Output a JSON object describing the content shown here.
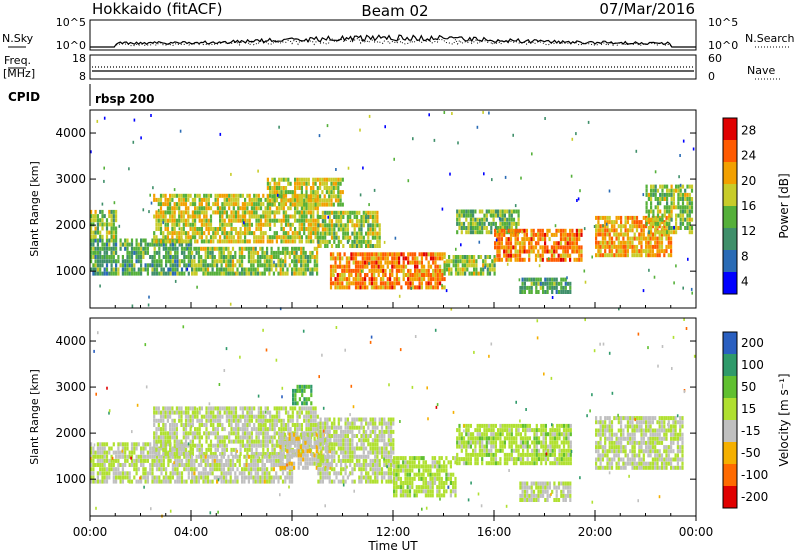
{
  "header": {
    "station": "Hokkaido (fitACF)",
    "beam": "Beam 02",
    "date": "07/Mar/2016"
  },
  "nsky_panel": {
    "label": "N.Sky",
    "left_ticks": [
      "10^5",
      "10^0"
    ],
    "right_ticks": [
      "10^5",
      "10^0"
    ],
    "right_label": "N.Search"
  },
  "freq_panel": {
    "label_top": "Freq.",
    "label_bottom": "[MHz]",
    "left_ticks": [
      "18",
      "8"
    ],
    "right_ticks": [
      "60",
      "0"
    ],
    "right_label": "Nave"
  },
  "cpid": {
    "label": "CPID",
    "mode": "rbsp 200"
  },
  "x_axis": {
    "label": "Time UT",
    "ticks": [
      "00:00",
      "04:00",
      "08:00",
      "12:00",
      "16:00",
      "20:00",
      "00:00"
    ]
  },
  "power_panel": {
    "ylabel": "Slant Range [km]",
    "yticks": [
      "4000",
      "3000",
      "2000",
      "1000"
    ],
    "colorbar_label": "Power [dB]",
    "colorbar_ticks": [
      "28",
      "24",
      "20",
      "16",
      "12",
      "8",
      "4"
    ]
  },
  "velocity_panel": {
    "ylabel": "Slant Range [km]",
    "yticks": [
      "4000",
      "3000",
      "2000",
      "1000"
    ],
    "colorbar_label": "Velocity [m s⁻¹]",
    "colorbar_ticks": [
      "200",
      "100",
      "50",
      "15",
      "-15",
      "-50",
      "-100",
      "-200"
    ]
  },
  "colors": {
    "power_scale": [
      "#0000ff",
      "#2a6bb5",
      "#3f8f6a",
      "#55b03a",
      "#c8cc2a",
      "#f2a000",
      "#ff5a00",
      "#e00000"
    ],
    "velocity_scale": [
      "#e00000",
      "#ff6a00",
      "#f5b000",
      "#c0c0c0",
      "#b0e030",
      "#60c030",
      "#2f9a6a",
      "#2a5fc0"
    ]
  },
  "chart_data": [
    {
      "type": "heatmap",
      "title": "Power [dB]",
      "xlabel": "Time UT",
      "ylabel": "Slant Range [km]",
      "xlim_hours": [
        0,
        24
      ],
      "ylim": [
        200,
        4500
      ],
      "clim": [
        0,
        32
      ],
      "bands": [
        {
          "start_h": 0.0,
          "end_h": 4.0,
          "r0": 900,
          "r1": 1700,
          "p": 12
        },
        {
          "start_h": 0.0,
          "end_h": 1.0,
          "r0": 1700,
          "r1": 2300,
          "p": 16
        },
        {
          "start_h": 2.5,
          "end_h": 9.0,
          "r0": 1600,
          "r1": 2600,
          "p": 18
        },
        {
          "start_h": 4.0,
          "end_h": 9.0,
          "r0": 900,
          "r1": 1500,
          "p": 16
        },
        {
          "start_h": 7.0,
          "end_h": 10.0,
          "r0": 2400,
          "r1": 3000,
          "p": 18
        },
        {
          "start_h": 9.0,
          "end_h": 11.5,
          "r0": 1500,
          "r1": 2300,
          "p": 16
        },
        {
          "start_h": 9.5,
          "end_h": 14.0,
          "r0": 600,
          "r1": 1400,
          "p": 24
        },
        {
          "start_h": 14.0,
          "end_h": 16.0,
          "r0": 900,
          "r1": 1300,
          "p": 16
        },
        {
          "start_h": 14.5,
          "end_h": 17.0,
          "r0": 1800,
          "r1": 2300,
          "p": 14
        },
        {
          "start_h": 16.0,
          "end_h": 19.5,
          "r0": 1200,
          "r1": 1900,
          "p": 24
        },
        {
          "start_h": 17.0,
          "end_h": 19.0,
          "r0": 500,
          "r1": 800,
          "p": 12
        },
        {
          "start_h": 20.0,
          "end_h": 23.0,
          "r0": 1300,
          "r1": 2200,
          "p": 22
        },
        {
          "start_h": 22.0,
          "end_h": 23.8,
          "r0": 1800,
          "r1": 2800,
          "p": 16
        }
      ]
    },
    {
      "type": "heatmap",
      "title": "Velocity [m s⁻¹]",
      "xlabel": "Time UT",
      "ylabel": "Slant Range [km]",
      "xlim_hours": [
        0,
        24
      ],
      "ylim": [
        200,
        4500
      ],
      "clim": [
        -250,
        250
      ],
      "bands": [
        {
          "start_h": 0.0,
          "end_h": 4.0,
          "r0": 900,
          "r1": 1800,
          "v": 0
        },
        {
          "start_h": 2.5,
          "end_h": 9.0,
          "r0": 1500,
          "r1": 2500,
          "v": 0
        },
        {
          "start_h": 4.0,
          "end_h": 8.0,
          "r0": 900,
          "r1": 1500,
          "v": -20
        },
        {
          "start_h": 7.5,
          "end_h": 9.5,
          "r0": 1200,
          "r1": 2000,
          "v": -40
        },
        {
          "start_h": 8.0,
          "end_h": 8.8,
          "r0": 2600,
          "r1": 3000,
          "v": 120
        },
        {
          "start_h": 9.0,
          "end_h": 12.0,
          "r0": 900,
          "r1": 2300,
          "v": 0
        },
        {
          "start_h": 12.0,
          "end_h": 14.5,
          "r0": 600,
          "r1": 1500,
          "v": 30
        },
        {
          "start_h": 14.5,
          "end_h": 19.0,
          "r0": 1300,
          "r1": 2200,
          "v": 30
        },
        {
          "start_h": 17.0,
          "end_h": 19.0,
          "r0": 500,
          "r1": 900,
          "v": 0
        },
        {
          "start_h": 20.0,
          "end_h": 23.5,
          "r0": 1200,
          "r1": 2300,
          "v": 0
        }
      ]
    }
  ]
}
